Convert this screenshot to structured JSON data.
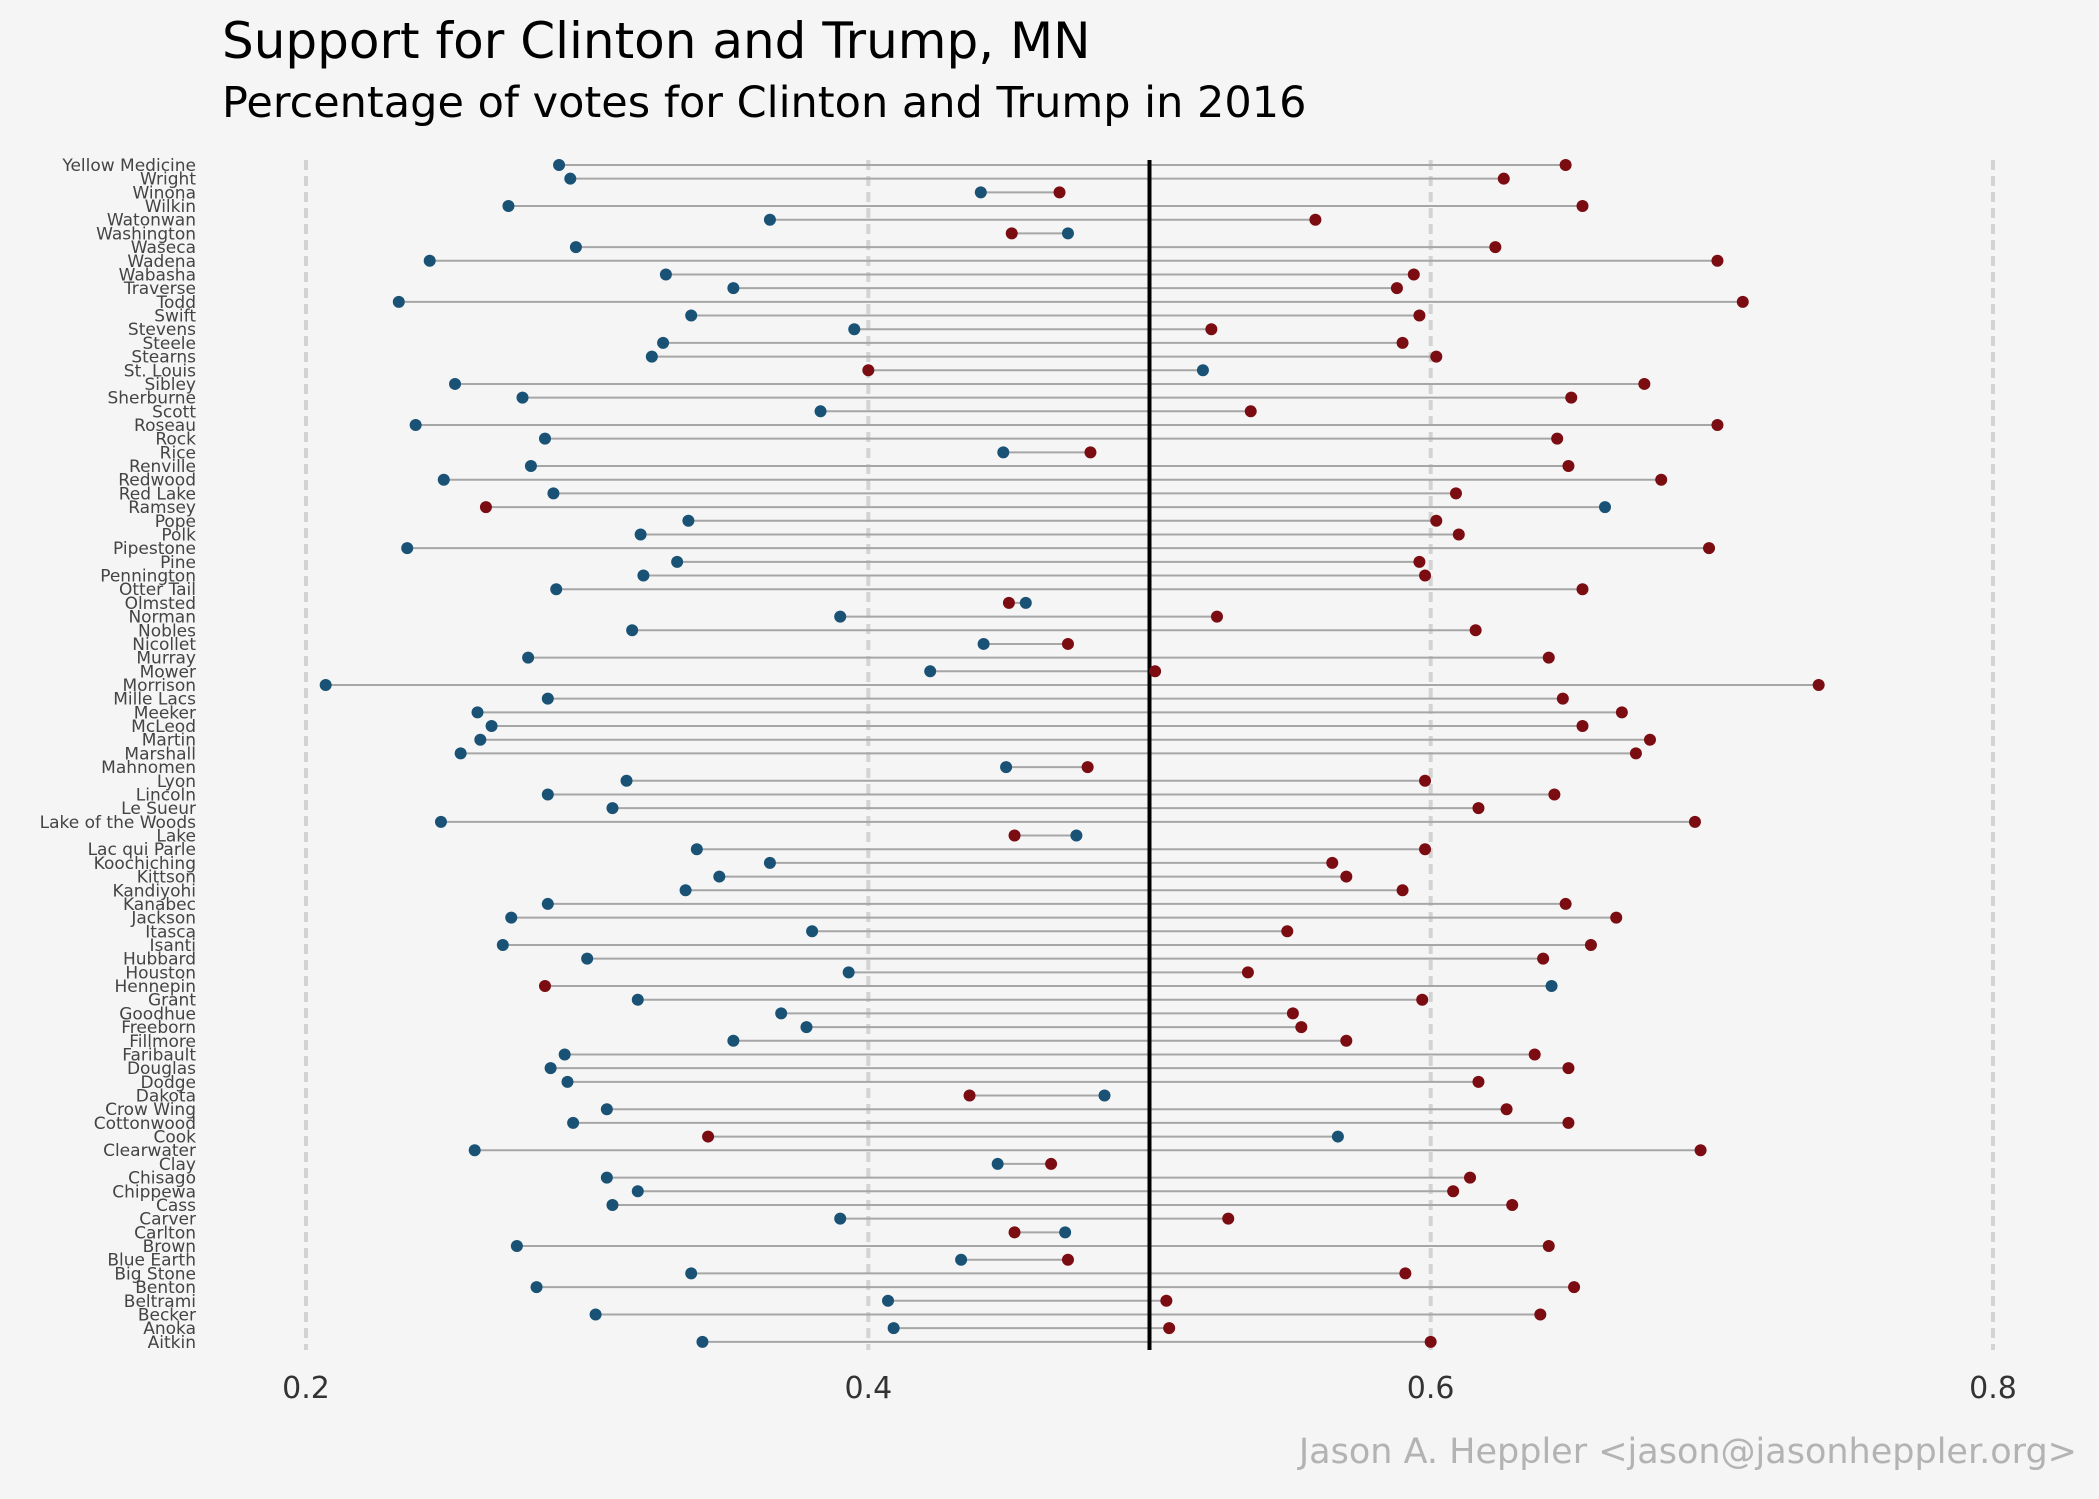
{
  "title": "Support for Clinton and Trump,  MN",
  "subtitle": "Percentage of votes for Clinton and Trump in 2016",
  "caption": "Jason A. Heppler <jason@jasonheppler.org>",
  "colors": {
    "clinton": "#1a5276",
    "trump": "#7b0c12",
    "segment": "#a6a6a6",
    "reference": "#000000",
    "grid": "#d3d3d3"
  },
  "chart_data": {
    "type": "dumbbell",
    "xlim": [
      0.2,
      0.8
    ],
    "xticks": [
      "0.2",
      "0.4",
      "0.6",
      "0.8"
    ],
    "reference_line": 0.5,
    "grid": "vertical dashed",
    "series": [
      {
        "key": "clinton"
      },
      {
        "key": "trump"
      }
    ],
    "rows": [
      {
        "county": "Yellow Medicine",
        "clinton": 0.29,
        "trump": 0.648
      },
      {
        "county": "Wright",
        "clinton": 0.294,
        "trump": 0.626
      },
      {
        "county": "Winona",
        "clinton": 0.44,
        "trump": 0.468
      },
      {
        "county": "Wilkin",
        "clinton": 0.272,
        "trump": 0.654
      },
      {
        "county": "Watonwan",
        "clinton": 0.365,
        "trump": 0.559
      },
      {
        "county": "Washington",
        "clinton": 0.471,
        "trump": 0.451
      },
      {
        "county": "Waseca",
        "clinton": 0.296,
        "trump": 0.623
      },
      {
        "county": "Wadena",
        "clinton": 0.244,
        "trump": 0.702
      },
      {
        "county": "Wabasha",
        "clinton": 0.328,
        "trump": 0.594
      },
      {
        "county": "Traverse",
        "clinton": 0.352,
        "trump": 0.588
      },
      {
        "county": "Todd",
        "clinton": 0.233,
        "trump": 0.711
      },
      {
        "county": "Swift",
        "clinton": 0.337,
        "trump": 0.596
      },
      {
        "county": "Stevens",
        "clinton": 0.395,
        "trump": 0.522
      },
      {
        "county": "Steele",
        "clinton": 0.327,
        "trump": 0.59
      },
      {
        "county": "Stearns",
        "clinton": 0.323,
        "trump": 0.602
      },
      {
        "county": "St. Louis",
        "clinton": 0.519,
        "trump": 0.4
      },
      {
        "county": "Sibley",
        "clinton": 0.253,
        "trump": 0.676
      },
      {
        "county": "Sherburne",
        "clinton": 0.277,
        "trump": 0.65
      },
      {
        "county": "Scott",
        "clinton": 0.383,
        "trump": 0.536
      },
      {
        "county": "Roseau",
        "clinton": 0.239,
        "trump": 0.702
      },
      {
        "county": "Rock",
        "clinton": 0.285,
        "trump": 0.645
      },
      {
        "county": "Rice",
        "clinton": 0.448,
        "trump": 0.479
      },
      {
        "county": "Renville",
        "clinton": 0.28,
        "trump": 0.649
      },
      {
        "county": "Redwood",
        "clinton": 0.249,
        "trump": 0.682
      },
      {
        "county": "Red Lake",
        "clinton": 0.288,
        "trump": 0.609
      },
      {
        "county": "Ramsey",
        "clinton": 0.662,
        "trump": 0.264
      },
      {
        "county": "Pope",
        "clinton": 0.336,
        "trump": 0.602
      },
      {
        "county": "Polk",
        "clinton": 0.319,
        "trump": 0.61
      },
      {
        "county": "Pipestone",
        "clinton": 0.236,
        "trump": 0.699
      },
      {
        "county": "Pine",
        "clinton": 0.332,
        "trump": 0.596
      },
      {
        "county": "Pennington",
        "clinton": 0.32,
        "trump": 0.598
      },
      {
        "county": "Otter Tail",
        "clinton": 0.289,
        "trump": 0.654
      },
      {
        "county": "Olmsted",
        "clinton": 0.456,
        "trump": 0.45
      },
      {
        "county": "Norman",
        "clinton": 0.39,
        "trump": 0.524
      },
      {
        "county": "Nobles",
        "clinton": 0.316,
        "trump": 0.616
      },
      {
        "county": "Nicollet",
        "clinton": 0.441,
        "trump": 0.471
      },
      {
        "county": "Murray",
        "clinton": 0.279,
        "trump": 0.642
      },
      {
        "county": "Mower",
        "clinton": 0.422,
        "trump": 0.502
      },
      {
        "county": "Morrison",
        "clinton": 0.207,
        "trump": 0.738
      },
      {
        "county": "Mille Lacs",
        "clinton": 0.286,
        "trump": 0.647
      },
      {
        "county": "Meeker",
        "clinton": 0.261,
        "trump": 0.668
      },
      {
        "county": "McLeod",
        "clinton": 0.266,
        "trump": 0.654
      },
      {
        "county": "Martin",
        "clinton": 0.262,
        "trump": 0.678
      },
      {
        "county": "Marshall",
        "clinton": 0.255,
        "trump": 0.673
      },
      {
        "county": "Mahnomen",
        "clinton": 0.449,
        "trump": 0.478
      },
      {
        "county": "Lyon",
        "clinton": 0.314,
        "trump": 0.598
      },
      {
        "county": "Lincoln",
        "clinton": 0.286,
        "trump": 0.644
      },
      {
        "county": "Le Sueur",
        "clinton": 0.309,
        "trump": 0.617
      },
      {
        "county": "Lake of the Woods",
        "clinton": 0.248,
        "trump": 0.694
      },
      {
        "county": "Lake",
        "clinton": 0.474,
        "trump": 0.452
      },
      {
        "county": "Lac qui Parle",
        "clinton": 0.339,
        "trump": 0.598
      },
      {
        "county": "Koochiching",
        "clinton": 0.365,
        "trump": 0.565
      },
      {
        "county": "Kittson",
        "clinton": 0.347,
        "trump": 0.57
      },
      {
        "county": "Kandiyohi",
        "clinton": 0.335,
        "trump": 0.59
      },
      {
        "county": "Kanabec",
        "clinton": 0.286,
        "trump": 0.648
      },
      {
        "county": "Jackson",
        "clinton": 0.273,
        "trump": 0.666
      },
      {
        "county": "Itasca",
        "clinton": 0.38,
        "trump": 0.549
      },
      {
        "county": "Isanti",
        "clinton": 0.27,
        "trump": 0.657
      },
      {
        "county": "Hubbard",
        "clinton": 0.3,
        "trump": 0.64
      },
      {
        "county": "Houston",
        "clinton": 0.393,
        "trump": 0.535
      },
      {
        "county": "Hennepin",
        "clinton": 0.643,
        "trump": 0.285
      },
      {
        "county": "Grant",
        "clinton": 0.318,
        "trump": 0.597
      },
      {
        "county": "Goodhue",
        "clinton": 0.369,
        "trump": 0.551
      },
      {
        "county": "Freeborn",
        "clinton": 0.378,
        "trump": 0.554
      },
      {
        "county": "Fillmore",
        "clinton": 0.352,
        "trump": 0.57
      },
      {
        "county": "Faribault",
        "clinton": 0.292,
        "trump": 0.637
      },
      {
        "county": "Douglas",
        "clinton": 0.287,
        "trump": 0.649
      },
      {
        "county": "Dodge",
        "clinton": 0.293,
        "trump": 0.617
      },
      {
        "county": "Dakota",
        "clinton": 0.484,
        "trump": 0.436
      },
      {
        "county": "Crow Wing",
        "clinton": 0.307,
        "trump": 0.627
      },
      {
        "county": "Cottonwood",
        "clinton": 0.295,
        "trump": 0.649
      },
      {
        "county": "Cook",
        "clinton": 0.567,
        "trump": 0.343
      },
      {
        "county": "Clearwater",
        "clinton": 0.26,
        "trump": 0.696
      },
      {
        "county": "Clay",
        "clinton": 0.446,
        "trump": 0.465
      },
      {
        "county": "Chisago",
        "clinton": 0.307,
        "trump": 0.614
      },
      {
        "county": "Chippewa",
        "clinton": 0.318,
        "trump": 0.608
      },
      {
        "county": "Cass",
        "clinton": 0.309,
        "trump": 0.629
      },
      {
        "county": "Carver",
        "clinton": 0.39,
        "trump": 0.528
      },
      {
        "county": "Carlton",
        "clinton": 0.47,
        "trump": 0.452
      },
      {
        "county": "Brown",
        "clinton": 0.275,
        "trump": 0.642
      },
      {
        "county": "Blue Earth",
        "clinton": 0.433,
        "trump": 0.471
      },
      {
        "county": "Big Stone",
        "clinton": 0.337,
        "trump": 0.591
      },
      {
        "county": "Benton",
        "clinton": 0.282,
        "trump": 0.651
      },
      {
        "county": "Beltrami",
        "clinton": 0.407,
        "trump": 0.506
      },
      {
        "county": "Becker",
        "clinton": 0.303,
        "trump": 0.639
      },
      {
        "county": "Anoka",
        "clinton": 0.409,
        "trump": 0.507
      },
      {
        "county": "Aitkin",
        "clinton": 0.341,
        "trump": 0.6
      }
    ]
  }
}
